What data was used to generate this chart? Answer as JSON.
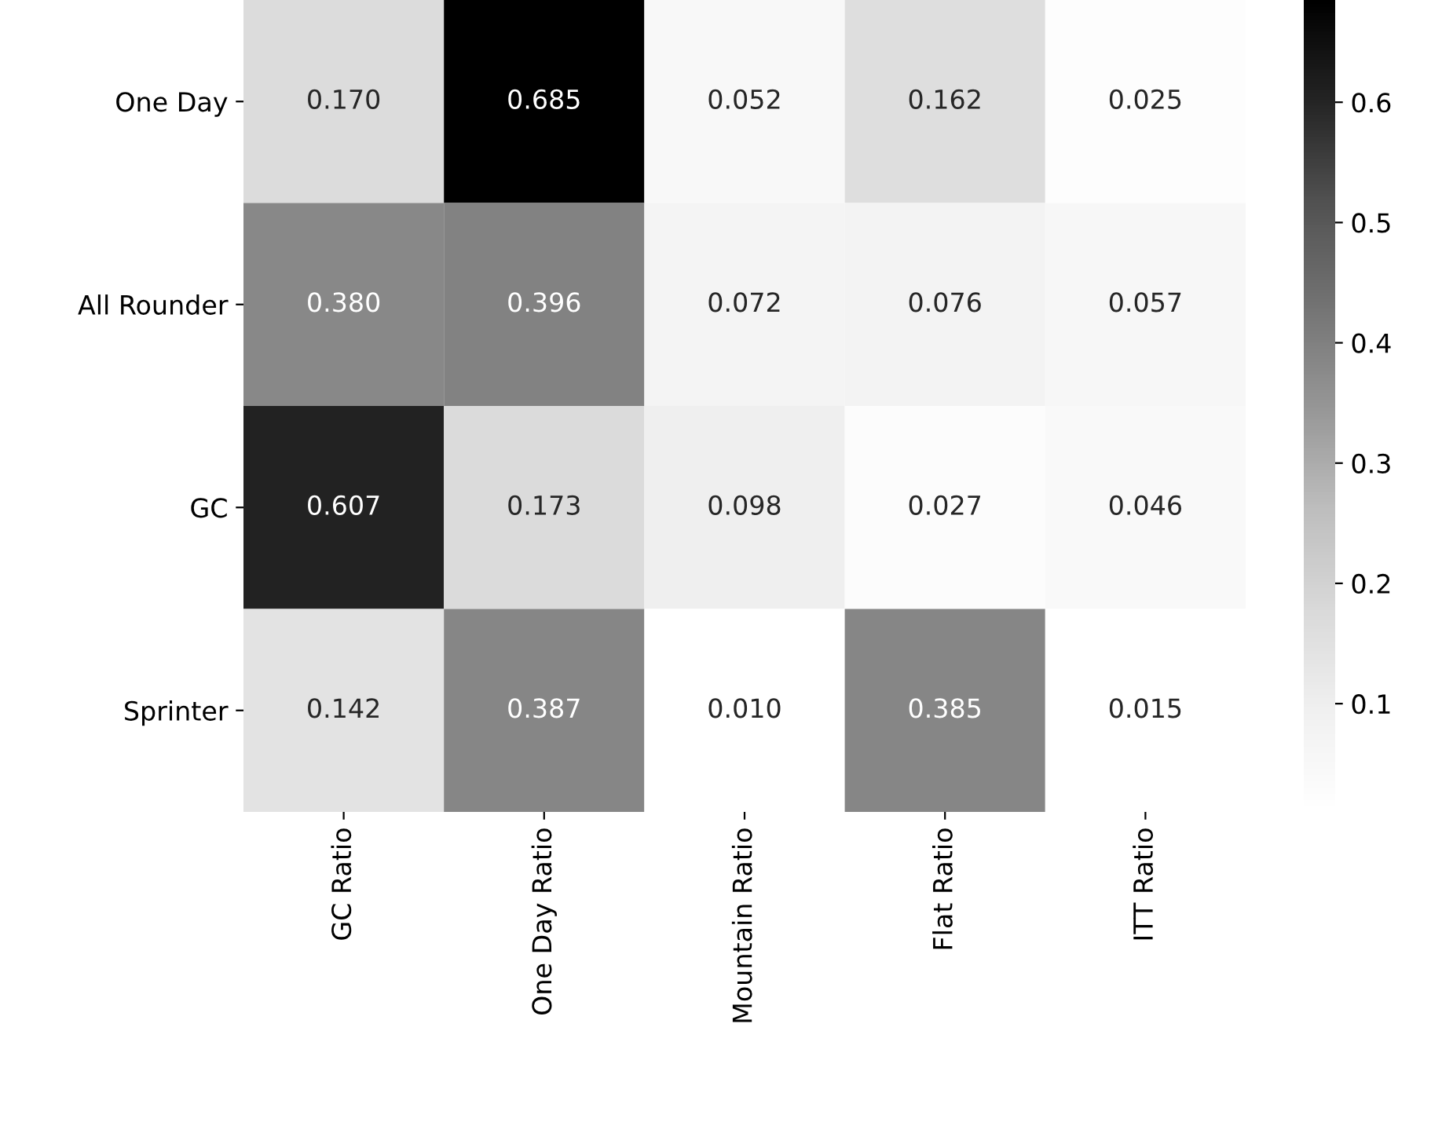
{
  "chart_data": {
    "type": "heatmap",
    "categories": [
      "GC Ratio",
      "One Day Ratio",
      "Mountain Ratio",
      "Flat Ratio",
      "ITT Ratio"
    ],
    "y_categories": [
      "One Day",
      "All Rounder",
      "GC",
      "Sprinter"
    ],
    "cells": [
      [
        0.17,
        0.685,
        0.052,
        0.162,
        0.025
      ],
      [
        0.38,
        0.396,
        0.072,
        0.076,
        0.057
      ],
      [
        0.607,
        0.173,
        0.098,
        0.027,
        0.046
      ],
      [
        0.142,
        0.387,
        0.01,
        0.385,
        0.015
      ]
    ],
    "cell_labels": [
      [
        "0.170",
        "0.685",
        "0.052",
        "0.162",
        "0.025"
      ],
      [
        "0.380",
        "0.396",
        "0.072",
        "0.076",
        "0.057"
      ],
      [
        "0.607",
        "0.173",
        "0.098",
        "0.027",
        "0.046"
      ],
      [
        "0.142",
        "0.387",
        "0.010",
        "0.385",
        "0.015"
      ]
    ],
    "clim": [
      0.01,
      0.685
    ],
    "cticks": [
      0.1,
      0.2,
      0.3,
      0.4,
      0.5,
      0.6
    ],
    "data_labels": true,
    "grid": false
  }
}
